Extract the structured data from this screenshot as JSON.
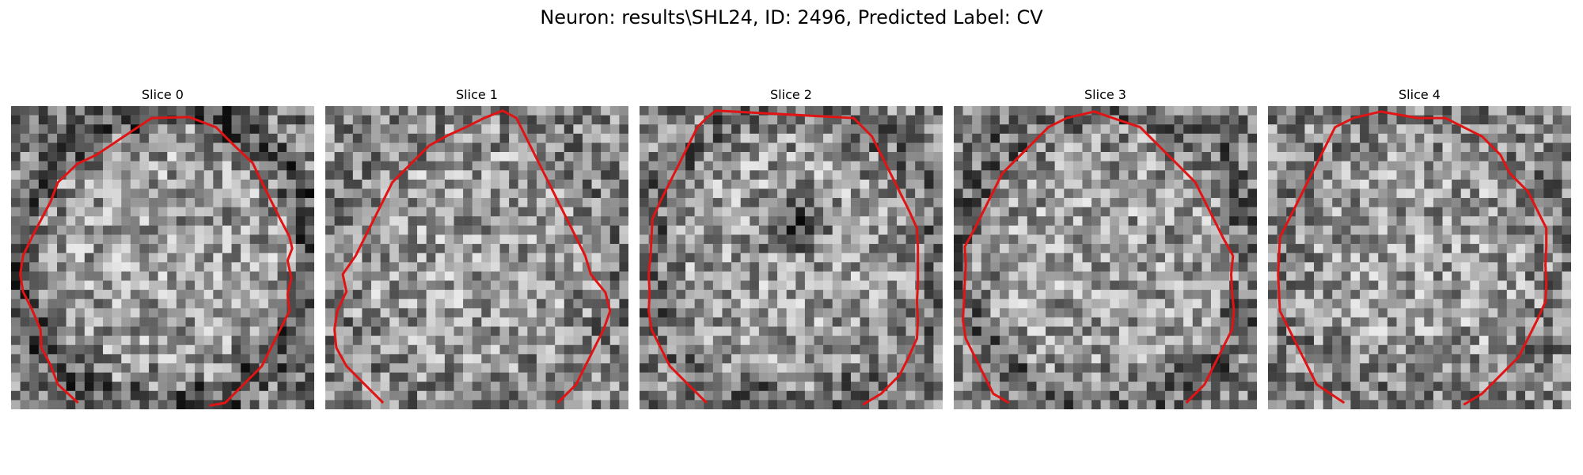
{
  "figure": {
    "title": "Neuron: results\\SHL24, ID: 2496, Predicted Label: CV",
    "contour_color": "#e01414"
  },
  "slices": [
    {
      "title": "Slice 0",
      "contour": [
        [
          7.3,
          32.3
        ],
        [
          5.1,
          30.3
        ],
        [
          4.3,
          28.2
        ],
        [
          3.3,
          26.3
        ],
        [
          3.2,
          24.3
        ],
        [
          2.3,
          22.2
        ],
        [
          1.3,
          20.2
        ],
        [
          1,
          18.3
        ],
        [
          1.3,
          16.3
        ],
        [
          2.3,
          14.2
        ],
        [
          3.3,
          12.3
        ],
        [
          4.3,
          10.4
        ],
        [
          5.1,
          8.3
        ],
        [
          7.2,
          6.3
        ],
        [
          9.3,
          5.3
        ],
        [
          12.3,
          3.3
        ],
        [
          15.3,
          1.3
        ],
        [
          19.4,
          1.2
        ],
        [
          22.3,
          2.3
        ],
        [
          24.3,
          4.3
        ],
        [
          26.3,
          6.2
        ],
        [
          27.3,
          8.3
        ],
        [
          28.3,
          10.3
        ],
        [
          29.3,
          12.3
        ],
        [
          30.3,
          14.2
        ],
        [
          30.6,
          15.5
        ],
        [
          30.1,
          16.8
        ],
        [
          30.5,
          18.7
        ],
        [
          30.1,
          20.5
        ],
        [
          30.3,
          22.3
        ],
        [
          29.3,
          24.3
        ],
        [
          28.3,
          26.3
        ],
        [
          27.3,
          28.3
        ],
        [
          25.3,
          30.3
        ],
        [
          23.3,
          32.3
        ],
        [
          21.6,
          32.6
        ]
      ]
    },
    {
      "title": "Slice 1",
      "contour": [
        [
          6.3,
          32.3
        ],
        [
          4.3,
          30.3
        ],
        [
          2.3,
          28.3
        ],
        [
          1.2,
          26.3
        ],
        [
          1,
          24.3
        ],
        [
          1.3,
          22.3
        ],
        [
          2.3,
          20.2
        ],
        [
          1.9,
          18.3
        ],
        [
          3.3,
          16.3
        ],
        [
          4.3,
          14.3
        ],
        [
          5.3,
          12.3
        ],
        [
          6.3,
          10.3
        ],
        [
          7.3,
          8.3
        ],
        [
          9.3,
          6.3
        ],
        [
          11.3,
          4.3
        ],
        [
          13.3,
          3.2
        ],
        [
          15.3,
          2.3
        ],
        [
          17.3,
          1.3
        ],
        [
          19.3,
          0.5
        ],
        [
          20.8,
          1.3
        ],
        [
          21.3,
          2.3
        ],
        [
          22.3,
          4.3
        ],
        [
          23.3,
          6.3
        ],
        [
          24.3,
          8.3
        ],
        [
          25.3,
          10.3
        ],
        [
          26.3,
          12.3
        ],
        [
          27.3,
          14.3
        ],
        [
          28.3,
          16.3
        ],
        [
          28.9,
          18.3
        ],
        [
          30.5,
          20.3
        ],
        [
          31,
          22.3
        ],
        [
          30.3,
          24.3
        ],
        [
          29.3,
          26.3
        ],
        [
          28.3,
          28.3
        ],
        [
          27.3,
          30.3
        ],
        [
          25.3,
          32.3
        ]
      ]
    },
    {
      "title": "Slice 2",
      "contour": [
        [
          7.3,
          32.3
        ],
        [
          5.3,
          30.3
        ],
        [
          3.3,
          28.3
        ],
        [
          2.3,
          26.3
        ],
        [
          1.3,
          24.3
        ],
        [
          1,
          22.3
        ],
        [
          1.1,
          20.3
        ],
        [
          1,
          18.3
        ],
        [
          1.2,
          16.3
        ],
        [
          1.3,
          14.3
        ],
        [
          1.4,
          12.3
        ],
        [
          2.3,
          10.3
        ],
        [
          3.3,
          8.3
        ],
        [
          4.3,
          6.3
        ],
        [
          5.3,
          4.3
        ],
        [
          6.3,
          2.3
        ],
        [
          7.3,
          1.3
        ],
        [
          8.3,
          0.5
        ],
        [
          23.3,
          1.3
        ],
        [
          25.3,
          3.3
        ],
        [
          26.3,
          5.3
        ],
        [
          27.3,
          7.3
        ],
        [
          28.3,
          9.3
        ],
        [
          29.3,
          11.3
        ],
        [
          30.2,
          13.3
        ],
        [
          30.3,
          15.3
        ],
        [
          30.3,
          17.3
        ],
        [
          30.3,
          19.3
        ],
        [
          30.2,
          21.3
        ],
        [
          30.3,
          23.3
        ],
        [
          30.2,
          25.3
        ],
        [
          29.3,
          27.3
        ],
        [
          28.3,
          29.3
        ],
        [
          26.3,
          31.3
        ],
        [
          24.3,
          32.5
        ]
      ]
    },
    {
      "title": "Slice 3",
      "contour": [
        [
          6,
          32.3
        ],
        [
          4.3,
          31.3
        ],
        [
          3.3,
          29.3
        ],
        [
          2.3,
          27.3
        ],
        [
          1.3,
          25.3
        ],
        [
          1,
          23.3
        ],
        [
          1.1,
          21.3
        ],
        [
          1.2,
          19.3
        ],
        [
          1.3,
          17.3
        ],
        [
          1.2,
          15.3
        ],
        [
          2.3,
          13.3
        ],
        [
          3.3,
          11.3
        ],
        [
          4.3,
          9.3
        ],
        [
          5.3,
          7.3
        ],
        [
          7.3,
          5.3
        ],
        [
          9.3,
          3.3
        ],
        [
          10.3,
          2.3
        ],
        [
          12.3,
          1.3
        ],
        [
          15.3,
          0.6
        ],
        [
          17.3,
          1.3
        ],
        [
          20.3,
          2.3
        ],
        [
          22.3,
          4.3
        ],
        [
          24.3,
          6.3
        ],
        [
          26.3,
          8.3
        ],
        [
          27.3,
          10.3
        ],
        [
          28.3,
          12.3
        ],
        [
          29.3,
          14.3
        ],
        [
          30.4,
          16.3
        ],
        [
          30.2,
          18.3
        ],
        [
          30.3,
          20.3
        ],
        [
          30.5,
          22.3
        ],
        [
          30.3,
          24.3
        ],
        [
          29.3,
          26.3
        ],
        [
          28.3,
          28.3
        ],
        [
          27.3,
          30.3
        ],
        [
          25.3,
          32.3
        ]
      ]
    },
    {
      "title": "Slice 4",
      "contour": [
        [
          8.3,
          32.3
        ],
        [
          5.3,
          30.3
        ],
        [
          4.3,
          28.3
        ],
        [
          3.3,
          26.3
        ],
        [
          2.3,
          24.3
        ],
        [
          1.3,
          22.3
        ],
        [
          1.2,
          20.3
        ],
        [
          1.1,
          18.3
        ],
        [
          1.2,
          16.3
        ],
        [
          1.3,
          14.3
        ],
        [
          2.3,
          12.3
        ],
        [
          3.3,
          10.3
        ],
        [
          4.3,
          8.3
        ],
        [
          5.3,
          6.3
        ],
        [
          6.3,
          4.3
        ],
        [
          7.3,
          2.3
        ],
        [
          9.3,
          1.3
        ],
        [
          12.3,
          0.6
        ],
        [
          16.3,
          1.3
        ],
        [
          19.3,
          1.3
        ],
        [
          21.3,
          2.3
        ],
        [
          23.3,
          3.3
        ],
        [
          25.3,
          5.3
        ],
        [
          26.3,
          7.3
        ],
        [
          28.3,
          9.3
        ],
        [
          29.3,
          11.3
        ],
        [
          30.3,
          13.3
        ],
        [
          30.3,
          15.3
        ],
        [
          30.2,
          17.3
        ],
        [
          30.3,
          19.3
        ],
        [
          30.2,
          21.3
        ],
        [
          29.3,
          23.3
        ],
        [
          28.3,
          25.3
        ],
        [
          27.3,
          27.3
        ],
        [
          25.3,
          29.3
        ],
        [
          23.3,
          31.3
        ],
        [
          21.3,
          32.5
        ]
      ]
    }
  ]
}
